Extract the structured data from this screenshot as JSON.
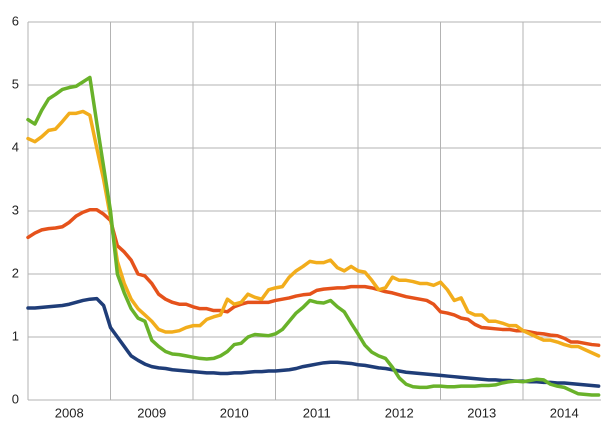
{
  "chart_data": {
    "type": "line",
    "categories": [
      null,
      null,
      null,
      null,
      null,
      null,
      "2008",
      null,
      null,
      null,
      null,
      null,
      null,
      null,
      null,
      null,
      null,
      null,
      "2009",
      null,
      null,
      null,
      null,
      null,
      null,
      null,
      null,
      null,
      null,
      null,
      "2010",
      null,
      null,
      null,
      null,
      null,
      null,
      null,
      null,
      null,
      null,
      null,
      "2011",
      null,
      null,
      null,
      null,
      null,
      null,
      null,
      null,
      null,
      null,
      null,
      "2012",
      null,
      null,
      null,
      null,
      null,
      null,
      null,
      null,
      null,
      null,
      null,
      "2013",
      null,
      null,
      null,
      null,
      null,
      null,
      null,
      null,
      null,
      null,
      null,
      "2014",
      null,
      null,
      null,
      null,
      null
    ],
    "ylim": [
      0,
      6
    ],
    "yticks": [
      0,
      1,
      2,
      3,
      4,
      5,
      6
    ],
    "grid": true,
    "series": [
      {
        "color": "#1f3d78",
        "values": [
          1.46,
          1.46,
          1.47,
          1.48,
          1.49,
          1.5,
          1.52,
          1.55,
          1.58,
          1.6,
          1.61,
          1.5,
          1.15,
          1.0,
          0.85,
          0.7,
          0.63,
          0.57,
          0.53,
          0.51,
          0.5,
          0.48,
          0.47,
          0.46,
          0.45,
          0.44,
          0.43,
          0.43,
          0.42,
          0.42,
          0.43,
          0.43,
          0.44,
          0.45,
          0.45,
          0.46,
          0.46,
          0.47,
          0.48,
          0.5,
          0.53,
          0.55,
          0.57,
          0.59,
          0.6,
          0.6,
          0.59,
          0.58,
          0.56,
          0.55,
          0.53,
          0.51,
          0.5,
          0.48,
          0.46,
          0.44,
          0.43,
          0.42,
          0.41,
          0.4,
          0.39,
          0.38,
          0.37,
          0.36,
          0.35,
          0.34,
          0.33,
          0.32,
          0.32,
          0.31,
          0.31,
          0.3,
          0.3,
          0.29,
          0.29,
          0.28,
          0.28,
          0.27,
          0.27,
          0.26,
          0.25,
          0.24,
          0.23,
          0.22
        ]
      },
      {
        "color": "#e5521b",
        "values": [
          2.58,
          2.65,
          2.7,
          2.72,
          2.73,
          2.75,
          2.82,
          2.92,
          2.98,
          3.02,
          3.02,
          2.95,
          2.85,
          2.45,
          2.35,
          2.22,
          2.0,
          1.97,
          1.85,
          1.68,
          1.6,
          1.55,
          1.52,
          1.52,
          1.48,
          1.45,
          1.45,
          1.42,
          1.42,
          1.4,
          1.48,
          1.52,
          1.55,
          1.55,
          1.55,
          1.55,
          1.58,
          1.6,
          1.62,
          1.65,
          1.67,
          1.68,
          1.74,
          1.76,
          1.77,
          1.78,
          1.78,
          1.8,
          1.8,
          1.8,
          1.78,
          1.75,
          1.72,
          1.7,
          1.67,
          1.64,
          1.62,
          1.6,
          1.58,
          1.52,
          1.4,
          1.38,
          1.35,
          1.3,
          1.28,
          1.2,
          1.15,
          1.14,
          1.13,
          1.12,
          1.12,
          1.1,
          1.1,
          1.08,
          1.06,
          1.05,
          1.03,
          1.02,
          0.98,
          0.92,
          0.92,
          0.9,
          0.88,
          0.87
        ]
      },
      {
        "color": "#f2ad1c",
        "values": [
          4.15,
          4.1,
          4.18,
          4.28,
          4.3,
          4.42,
          4.55,
          4.55,
          4.58,
          4.52,
          4.0,
          3.5,
          2.9,
          2.2,
          1.85,
          1.6,
          1.45,
          1.35,
          1.25,
          1.12,
          1.08,
          1.08,
          1.1,
          1.15,
          1.18,
          1.18,
          1.28,
          1.32,
          1.35,
          1.6,
          1.52,
          1.55,
          1.68,
          1.63,
          1.6,
          1.75,
          1.78,
          1.8,
          1.95,
          2.05,
          2.12,
          2.2,
          2.18,
          2.18,
          2.22,
          2.1,
          2.05,
          2.12,
          2.05,
          2.03,
          1.9,
          1.75,
          1.78,
          1.95,
          1.9,
          1.9,
          1.88,
          1.85,
          1.85,
          1.82,
          1.87,
          1.75,
          1.58,
          1.62,
          1.4,
          1.35,
          1.35,
          1.25,
          1.25,
          1.22,
          1.18,
          1.18,
          1.1,
          1.05,
          1.0,
          0.95,
          0.95,
          0.92,
          0.88,
          0.85,
          0.85,
          0.8,
          0.75,
          0.7
        ]
      },
      {
        "color": "#69b22a",
        "values": [
          4.45,
          4.38,
          4.6,
          4.78,
          4.85,
          4.93,
          4.96,
          4.98,
          5.05,
          5.12,
          4.4,
          3.7,
          3.0,
          2.0,
          1.7,
          1.45,
          1.3,
          1.25,
          0.95,
          0.85,
          0.77,
          0.73,
          0.72,
          0.7,
          0.68,
          0.66,
          0.65,
          0.66,
          0.7,
          0.77,
          0.88,
          0.9,
          1.0,
          1.04,
          1.03,
          1.02,
          1.05,
          1.12,
          1.25,
          1.38,
          1.47,
          1.58,
          1.55,
          1.54,
          1.58,
          1.48,
          1.4,
          1.22,
          1.05,
          0.87,
          0.76,
          0.7,
          0.66,
          0.52,
          0.35,
          0.25,
          0.21,
          0.2,
          0.2,
          0.22,
          0.22,
          0.21,
          0.21,
          0.22,
          0.22,
          0.22,
          0.23,
          0.23,
          0.24,
          0.27,
          0.29,
          0.3,
          0.29,
          0.31,
          0.33,
          0.32,
          0.25,
          0.22,
          0.2,
          0.15,
          0.1,
          0.09,
          0.08,
          0.08
        ]
      }
    ]
  }
}
